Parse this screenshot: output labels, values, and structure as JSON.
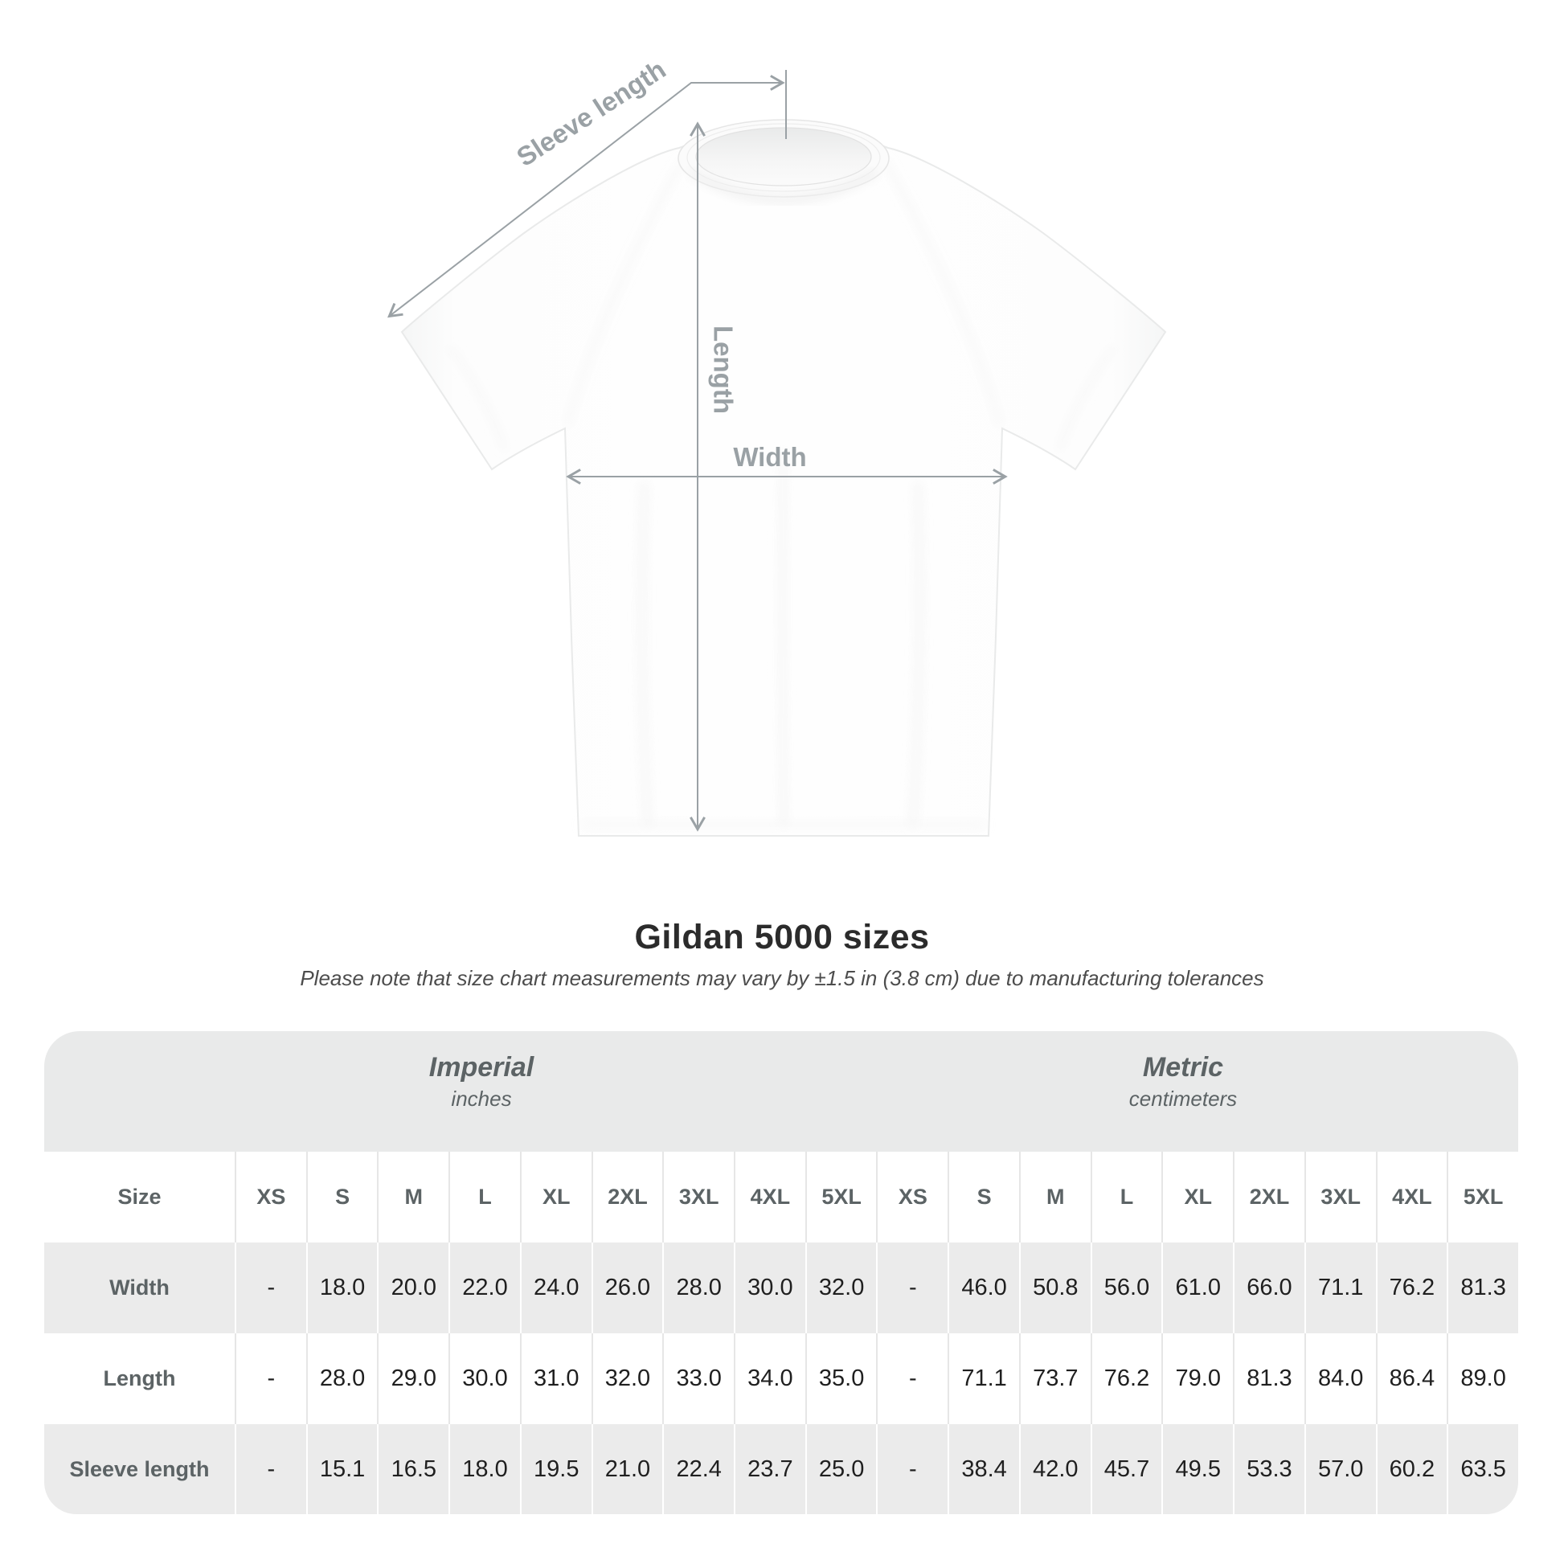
{
  "diagram": {
    "sleeve_length_label": "Sleeve length",
    "length_label": "Length",
    "width_label": "Width",
    "annotation_color": "#9aa1a5",
    "shirt_color": "#fdfdfd"
  },
  "heading": {
    "title": "Gildan 5000 sizes",
    "note": "Please note that size chart measurements may vary by ±1.5 in (3.8 cm) due to manufacturing tolerances"
  },
  "table": {
    "band_color": "#e9eaea",
    "stripe_color": "#ebebeb",
    "label_color": "#5c6365",
    "value_color": "#1f1f1f",
    "sections": [
      {
        "name": "Imperial",
        "unit": "inches"
      },
      {
        "name": "Metric",
        "unit": "centimeters"
      }
    ],
    "size_column_header": "Size",
    "sizes": [
      "XS",
      "S",
      "M",
      "L",
      "XL",
      "2XL",
      "3XL",
      "4XL",
      "5XL"
    ],
    "rows": [
      {
        "label": "Width",
        "imperial": [
          "-",
          "18.0",
          "20.0",
          "22.0",
          "24.0",
          "26.0",
          "28.0",
          "30.0",
          "32.0"
        ],
        "metric": [
          "-",
          "46.0",
          "50.8",
          "56.0",
          "61.0",
          "66.0",
          "71.1",
          "76.2",
          "81.3"
        ]
      },
      {
        "label": "Length",
        "imperial": [
          "-",
          "28.0",
          "29.0",
          "30.0",
          "31.0",
          "32.0",
          "33.0",
          "34.0",
          "35.0"
        ],
        "metric": [
          "-",
          "71.1",
          "73.7",
          "76.2",
          "79.0",
          "81.3",
          "84.0",
          "86.4",
          "89.0"
        ]
      },
      {
        "label": "Sleeve length",
        "imperial": [
          "-",
          "15.1",
          "16.5",
          "18.0",
          "19.5",
          "21.0",
          "22.4",
          "23.7",
          "25.0"
        ],
        "metric": [
          "-",
          "38.4",
          "42.0",
          "45.7",
          "49.5",
          "53.3",
          "57.0",
          "60.2",
          "63.5"
        ]
      }
    ]
  },
  "chart_data": {
    "type": "table",
    "title": "Gildan 5000 sizes",
    "sections": [
      "Imperial (inches)",
      "Metric (centimeters)"
    ],
    "columns": [
      "Size",
      "XS",
      "S",
      "M",
      "L",
      "XL",
      "2XL",
      "3XL",
      "4XL",
      "5XL",
      "XS",
      "S",
      "M",
      "L",
      "XL",
      "2XL",
      "3XL",
      "4XL",
      "5XL"
    ],
    "rows": [
      [
        "Width",
        "-",
        "18.0",
        "20.0",
        "22.0",
        "24.0",
        "26.0",
        "28.0",
        "30.0",
        "32.0",
        "-",
        "46.0",
        "50.8",
        "56.0",
        "61.0",
        "66.0",
        "71.1",
        "76.2",
        "81.3"
      ],
      [
        "Length",
        "-",
        "28.0",
        "29.0",
        "30.0",
        "31.0",
        "32.0",
        "33.0",
        "34.0",
        "35.0",
        "-",
        "71.1",
        "73.7",
        "76.2",
        "79.0",
        "81.3",
        "84.0",
        "86.4",
        "89.0"
      ],
      [
        "Sleeve length",
        "-",
        "15.1",
        "16.5",
        "18.0",
        "19.5",
        "21.0",
        "22.4",
        "23.7",
        "25.0",
        "-",
        "38.4",
        "42.0",
        "45.7",
        "49.5",
        "53.3",
        "57.0",
        "60.2",
        "63.5"
      ]
    ]
  }
}
